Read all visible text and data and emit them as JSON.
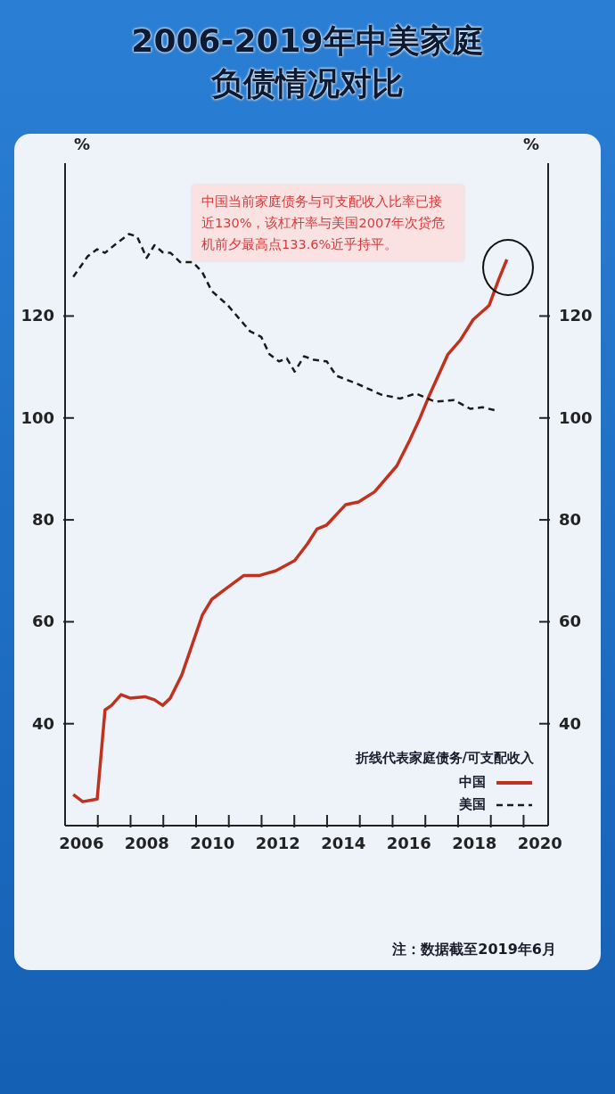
{
  "chart_data": {
    "type": "line",
    "title": "2006-2019年中美家庭负债情况对比",
    "ylabel": "%",
    "y2label": "%",
    "legend_title": "折线代表家庭债务/可支配收入",
    "annotations": [
      "中国当前家庭债务与可支配收入比率已接近130%，该杠杆率与美国2007年次贷危机前夕最高点133.6%近乎持平。",
      "注：数据截至2019年6月"
    ],
    "xlim": [
      2006,
      2020.75
    ],
    "xticks": [
      {
        "value": 2006.5,
        "label": "2006"
      },
      {
        "value": 2007,
        "label": null
      },
      {
        "value": 2008,
        "label": null
      },
      {
        "value": 2008.5,
        "label": "2008"
      },
      {
        "value": 2009,
        "label": null
      },
      {
        "value": 2010,
        "label": null
      },
      {
        "value": 2010.5,
        "label": "2010"
      },
      {
        "value": 2011,
        "label": null
      },
      {
        "value": 2012,
        "label": null
      },
      {
        "value": 2012.5,
        "label": "2012"
      },
      {
        "value": 2013,
        "label": null
      },
      {
        "value": 2014,
        "label": null
      },
      {
        "value": 2014.5,
        "label": "2014"
      },
      {
        "value": 2015,
        "label": null
      },
      {
        "value": 2016,
        "label": null
      },
      {
        "value": 2016.5,
        "label": "2016"
      },
      {
        "value": 2017,
        "label": null
      },
      {
        "value": 2018,
        "label": null
      },
      {
        "value": 2018.5,
        "label": "2018"
      },
      {
        "value": 2019,
        "label": null
      },
      {
        "value": 2020,
        "label": null
      },
      {
        "value": 2020.5,
        "label": "2020"
      }
    ],
    "ylim": [
      20,
      150
    ],
    "yticks": [
      40,
      60,
      80,
      100,
      120
    ],
    "y2lim": [
      20,
      150
    ],
    "y2ticks": [
      40,
      60,
      80,
      100,
      120
    ],
    "legend": "bottom right",
    "marker": "none",
    "series": [
      {
        "name": "中国",
        "color": "#c0321f",
        "line_style": "solid",
        "x": [
          2006.25,
          2006.54,
          2006.98,
          2007.22,
          2007.42,
          2007.71,
          2008.0,
          2008.44,
          2008.73,
          2008.98,
          2009.21,
          2009.56,
          2009.71,
          2010.19,
          2010.48,
          2010.87,
          2011.46,
          2011.94,
          2012.43,
          2013.01,
          2013.4,
          2013.69,
          2013.99,
          2014.57,
          2014.96,
          2015.45,
          2016.13,
          2016.52,
          2016.81,
          2017.1,
          2017.69,
          2018.07,
          2018.46,
          2018.95,
          2019.24,
          2019.49
        ],
        "values": [
          26.1,
          24.7,
          25.2,
          42.7,
          43.6,
          45.7,
          45.0,
          45.3,
          44.7,
          43.6,
          45.0,
          49.5,
          52.3,
          61.3,
          64.4,
          66.3,
          69.1,
          69.1,
          70.0,
          72.0,
          75.3,
          78.2,
          79.0,
          83.0,
          83.5,
          85.5,
          90.6,
          95.6,
          99.6,
          104.1,
          112.5,
          115.3,
          119.3,
          122.1,
          127.2,
          131.1
        ]
      },
      {
        "name": "美国",
        "color": "#1a1a1a",
        "line_style": "dashed",
        "x": [
          2006.25,
          2006.69,
          2006.98,
          2007.22,
          2007.56,
          2007.95,
          2008.2,
          2008.49,
          2008.73,
          2008.98,
          2009.22,
          2009.51,
          2009.9,
          2010.19,
          2010.48,
          2010.97,
          2011.65,
          2011.99,
          2012.24,
          2012.53,
          2012.77,
          2013.01,
          2013.3,
          2013.6,
          2013.99,
          2014.28,
          2014.96,
          2015.64,
          2016.23,
          2016.71,
          2017.29,
          2017.88,
          2018.37,
          2018.75,
          2019.19
        ],
        "values": [
          127.7,
          131.7,
          133.1,
          132.4,
          134.2,
          136.1,
          135.6,
          131.4,
          133.9,
          132.5,
          132.4,
          130.6,
          130.6,
          128.6,
          124.9,
          122.1,
          117.0,
          115.9,
          112.5,
          111.1,
          111.7,
          109.1,
          112.1,
          111.4,
          111.1,
          108.3,
          106.6,
          104.6,
          103.8,
          104.8,
          103.2,
          103.5,
          101.8,
          102.1,
          101.4
        ]
      }
    ]
  }
}
